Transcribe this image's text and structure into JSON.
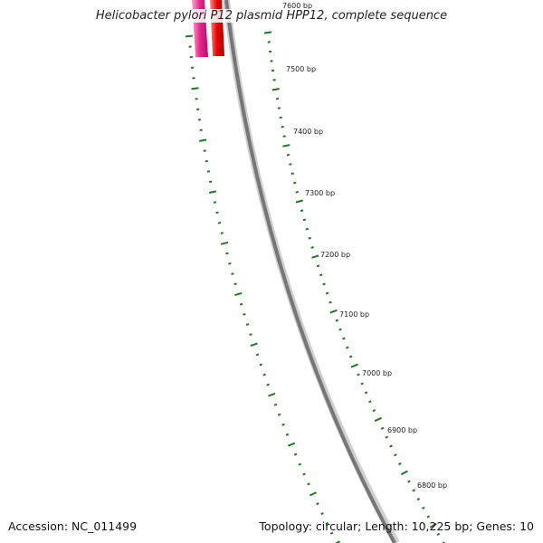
{
  "title": "Helicobacter pylori P12 plasmid HPP12, complete sequence",
  "footer": {
    "accession": "Accession: NC_011499",
    "summary": "Topology: circular; Length: 10,225 bp; Genes: 10"
  },
  "map": {
    "topology": "circular",
    "length_bp": 10225,
    "genes": 10,
    "scale_labels": [
      {
        "bp": 7600,
        "text": "7600 bp"
      },
      {
        "bp": 7500,
        "text": "7500 bp"
      },
      {
        "bp": 7400,
        "text": "7400 bp"
      },
      {
        "bp": 7300,
        "text": "7300 bp"
      },
      {
        "bp": 7200,
        "text": "7200 bp"
      },
      {
        "bp": 7100,
        "text": "7100 bp"
      },
      {
        "bp": 7000,
        "text": "7000 bp"
      },
      {
        "bp": 6900,
        "text": "6900 bp"
      },
      {
        "bp": 6800,
        "text": "6800 bp"
      }
    ],
    "colors": {
      "backbone": "#777777",
      "ticks": "#1f7a1f",
      "feature_pink": "#e8268a",
      "feature_red": "#e60000"
    }
  }
}
